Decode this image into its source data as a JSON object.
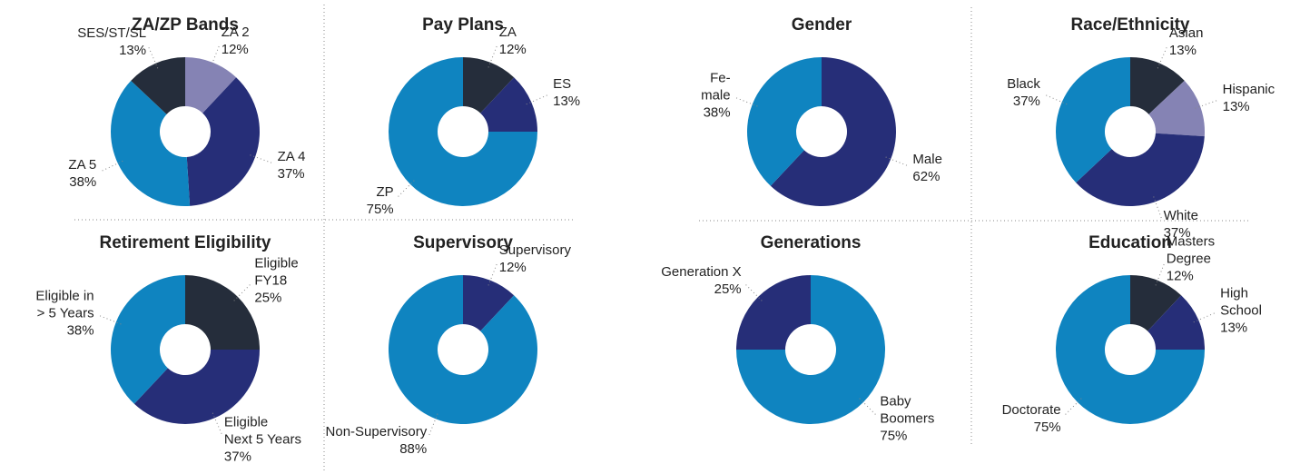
{
  "chart_data": [
    {
      "type": "pie",
      "title": "ZA/ZP Bands",
      "categories": [
        "ZA 2",
        "ZA 4",
        "ZA 5",
        "SES/ST/SL"
      ],
      "values": [
        12,
        37,
        38,
        13
      ],
      "value_labels": [
        "12%",
        "37%",
        "38%",
        "13%"
      ],
      "colors": [
        "#8583b4",
        "#262e78",
        "#0f84c0",
        "#252d3b"
      ]
    },
    {
      "type": "pie",
      "title": "Pay Plans",
      "categories": [
        "ZA",
        "ES",
        "ZP"
      ],
      "values": [
        12,
        13,
        75
      ],
      "value_labels": [
        "12%",
        "13%",
        "75%"
      ],
      "colors": [
        "#252d3b",
        "#262e78",
        "#0f84c0"
      ]
    },
    {
      "type": "pie",
      "title": "Gender",
      "categories": [
        "Male",
        "Fe-\nmale"
      ],
      "values": [
        62,
        38
      ],
      "value_labels": [
        "62%",
        "38%"
      ],
      "colors": [
        "#262e78",
        "#0f84c0"
      ]
    },
    {
      "type": "pie",
      "title": "Race/Ethnicity",
      "categories": [
        "Asian",
        "Hispanic",
        "White",
        "Black"
      ],
      "values": [
        13,
        13,
        37,
        37
      ],
      "value_labels": [
        "13%",
        "13%",
        "37%",
        "37%"
      ],
      "colors": [
        "#252d3b",
        "#8583b4",
        "#262e78",
        "#0f84c0"
      ]
    },
    {
      "type": "pie",
      "title": "Retirement Eligibility",
      "categories": [
        "Eligible\nFY18",
        "Eligible\nNext 5 Years",
        "Eligible in\n> 5 Years"
      ],
      "values": [
        25,
        37,
        38
      ],
      "value_labels": [
        "25%",
        "37%",
        "38%"
      ],
      "colors": [
        "#252d3b",
        "#262e78",
        "#0f84c0"
      ]
    },
    {
      "type": "pie",
      "title": "Supervisory",
      "categories": [
        "Supervisory",
        "Non-Supervisory"
      ],
      "values": [
        12,
        88
      ],
      "value_labels": [
        "12%",
        "88%"
      ],
      "colors": [
        "#262e78",
        "#0f84c0"
      ]
    },
    {
      "type": "pie",
      "title": "Generations",
      "categories": [
        "Baby\nBoomers",
        "Generation X"
      ],
      "values": [
        75,
        25
      ],
      "value_labels": [
        "75%",
        "25%"
      ],
      "colors": [
        "#0f84c0",
        "#262e78"
      ]
    },
    {
      "type": "pie",
      "title": "Education",
      "categories": [
        "Masters\nDegree",
        "High\nSchool",
        "Doctorate"
      ],
      "values": [
        12,
        13,
        75
      ],
      "value_labels": [
        "12%",
        "13%",
        "75%"
      ],
      "colors": [
        "#252d3b",
        "#262e78",
        "#0f84c0"
      ]
    }
  ]
}
